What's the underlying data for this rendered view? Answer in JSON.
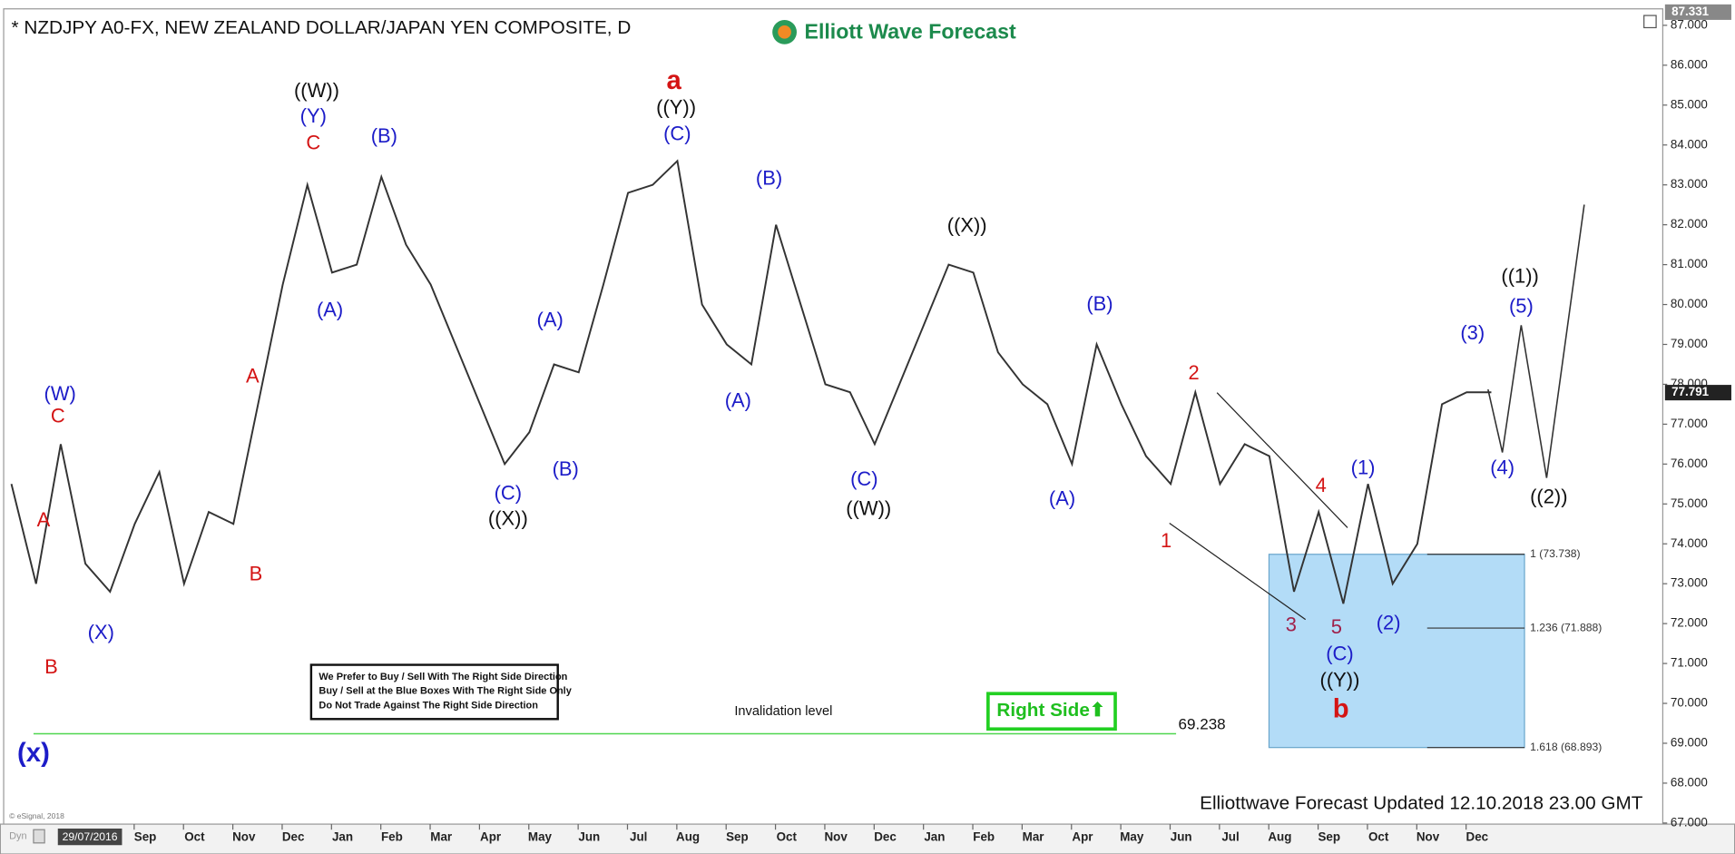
{
  "chart_data": {
    "type": "line",
    "title": "* NZDJPY A0-FX, NEW ZEALAND DOLLAR/JAPAN YEN COMPOSITE, D",
    "logo_text": "Elliott Wave Forecast",
    "series": [
      {
        "name": "NZDJPY",
        "color": "#333333",
        "values": [
          75.5,
          73,
          76.5,
          73.5,
          72.8,
          74.5,
          75.8,
          73,
          74.8,
          74.5,
          77.5,
          80.5,
          83,
          80.8,
          81,
          83.2,
          81.5,
          80.5,
          79,
          77.5,
          76,
          76.8,
          78.5,
          78.3,
          80.5,
          82.8,
          83,
          83.6,
          80,
          79,
          78.5,
          82,
          80,
          78,
          77.8,
          76.5,
          78,
          79.5,
          81,
          80.8,
          78.8,
          78,
          77.5,
          76,
          79,
          77.5,
          76.2,
          75.5,
          77.8,
          75.5,
          76.5,
          76.2,
          72.8,
          74.8,
          72.5,
          75.5,
          73,
          74,
          77.5,
          77.8,
          77.8
        ]
      }
    ],
    "ylim": [
      67,
      87.33
    ],
    "yticks": [
      {
        "value": 67,
        "label": "67.000"
      },
      {
        "value": 68,
        "label": "68.000"
      },
      {
        "value": 69,
        "label": "69.000"
      },
      {
        "value": 70,
        "label": "70.000"
      },
      {
        "value": 71,
        "label": "71.000"
      },
      {
        "value": 72,
        "label": "72.000"
      },
      {
        "value": 73,
        "label": "73.000"
      },
      {
        "value": 74,
        "label": "74.000"
      },
      {
        "value": 75,
        "label": "75.000"
      },
      {
        "value": 76,
        "label": "76.000"
      },
      {
        "value": 77,
        "label": "77.000"
      },
      {
        "value": 78,
        "label": "78.000"
      },
      {
        "value": 79,
        "label": "79.000"
      },
      {
        "value": 80,
        "label": "80.000"
      },
      {
        "value": 81,
        "label": "81.000"
      },
      {
        "value": 82,
        "label": "82.000"
      },
      {
        "value": 83,
        "label": "83.000"
      },
      {
        "value": 84,
        "label": "84.000"
      },
      {
        "value": 85,
        "label": "85.000"
      },
      {
        "value": 86,
        "label": "86.000"
      },
      {
        "value": 87,
        "label": "87.000"
      }
    ],
    "month_labels": [
      "Sep",
      "Oct",
      "Nov",
      "Dec",
      "Jan",
      "Feb",
      "Mar",
      "Apr",
      "May",
      "Jun",
      "Jul",
      "Aug",
      "Sep",
      "Oct",
      "Nov",
      "Dec",
      "Jan",
      "Feb",
      "Mar",
      "Apr",
      "May",
      "Jun",
      "Jul",
      "Aug",
      "Sep",
      "Oct",
      "Nov",
      "Dec"
    ],
    "start_date_label": "29/07/2016",
    "price_markers": [
      87.331,
      77.791
    ],
    "fib_levels": [
      {
        "value": 73.738,
        "label": "1 (73.738)"
      },
      {
        "value": 71.888,
        "label": "1.236 (71.888)"
      },
      {
        "value": 68.893,
        "label": "1.618 (68.893)"
      }
    ],
    "invalidation_level": 69.238,
    "invalidation_text": "Invalidation level",
    "annotations": [
      {
        "text": "(W)",
        "color": "#1c1cc8"
      },
      {
        "text": "C",
        "color": "#d41414"
      },
      {
        "text": "A",
        "color": "#d41414"
      },
      {
        "text": "B",
        "color": "#d41414"
      },
      {
        "text": "(X)",
        "color": "#1c1cc8"
      },
      {
        "text": "(x)",
        "color": "#1c1cc8"
      },
      {
        "text": "A",
        "color": "#d41414"
      },
      {
        "text": "B",
        "color": "#d41414"
      },
      {
        "text": "((W))",
        "color": "#111111"
      },
      {
        "text": "(Y)",
        "color": "#1c1cc8"
      },
      {
        "text": "C",
        "color": "#d41414"
      },
      {
        "text": "(B)",
        "color": "#1c1cc8"
      },
      {
        "text": "(A)",
        "color": "#1c1cc8"
      },
      {
        "text": "(C)",
        "color": "#1c1cc8"
      },
      {
        "text": "((X))",
        "color": "#111111"
      },
      {
        "text": "(A)",
        "color": "#1c1cc8"
      },
      {
        "text": "(B)",
        "color": "#1c1cc8"
      },
      {
        "text": "a",
        "color": "#d41414"
      },
      {
        "text": "((Y))",
        "color": "#111111"
      },
      {
        "text": "(C)",
        "color": "#1c1cc8"
      },
      {
        "text": "(B)",
        "color": "#1c1cc8"
      },
      {
        "text": "(A)",
        "color": "#1c1cc8"
      },
      {
        "text": "(C)",
        "color": "#1c1cc8"
      },
      {
        "text": "((W))",
        "color": "#111111"
      },
      {
        "text": "((X))",
        "color": "#111111"
      },
      {
        "text": "(B)",
        "color": "#1c1cc8"
      },
      {
        "text": "(A)",
        "color": "#1c1cc8"
      },
      {
        "text": "1",
        "color": "#d41414"
      },
      {
        "text": "2",
        "color": "#d41414"
      },
      {
        "text": "3",
        "color": "#a0204a"
      },
      {
        "text": "4",
        "color": "#d41414"
      },
      {
        "text": "5",
        "color": "#a0204a"
      },
      {
        "text": "(1)",
        "color": "#1c1cc8"
      },
      {
        "text": "(2)",
        "color": "#1c1cc8"
      },
      {
        "text": "(C)",
        "color": "#1c1cc8"
      },
      {
        "text": "((Y))",
        "color": "#111111"
      },
      {
        "text": "b",
        "color": "#d41414"
      },
      {
        "text": "(3)",
        "color": "#1c1cc8"
      },
      {
        "text": "(4)",
        "color": "#1c1cc8"
      },
      {
        "text": "(5)",
        "color": "#1c1cc8"
      },
      {
        "text": "((1))",
        "color": "#111111"
      },
      {
        "text": "((2))",
        "color": "#111111"
      }
    ],
    "note_lines": [
      "We Prefer to Buy / Sell With The Right Side Direction",
      "Buy / Sell at the Blue Boxes With The Right Side Only",
      "Do Not Trade Against The Right Side Direction"
    ],
    "button_text": "Right Side⬆",
    "footer": "Elliottwave Forecast Updated 12.10.2018 23.00 GMT",
    "copyright": "© eSignal, 2018",
    "dyn_label": "Dyn"
  }
}
